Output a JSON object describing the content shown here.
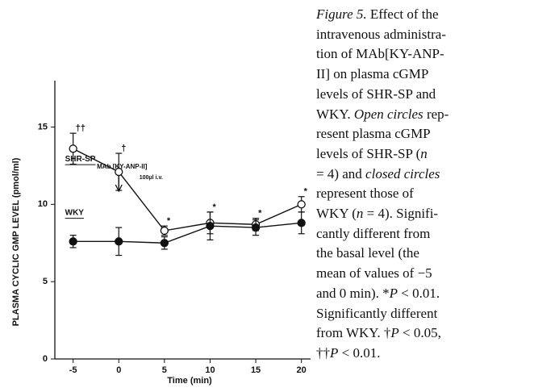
{
  "chart_data": {
    "type": "line",
    "y_label": "PLASMA CYCLIC GMP LEVEL (pmol/ml)",
    "x_label": "Time (min)",
    "x": [
      -5,
      0,
      5,
      10,
      15,
      20
    ],
    "xlim": [
      -7,
      21
    ],
    "xticks": [
      -5,
      0,
      5,
      10,
      15,
      20
    ],
    "ylim": [
      0,
      18
    ],
    "yticks": [
      0,
      5,
      10,
      15
    ],
    "annotation": {
      "text": "MAb [KY-ANP-II]",
      "subtext": "100μl i.v.",
      "x": 0
    },
    "series": [
      {
        "name": "SHR-SP",
        "color": "#111111",
        "marker": "open",
        "values": [
          13.6,
          12.1,
          8.3,
          8.8,
          8.7,
          10.0
        ],
        "errors": [
          1.0,
          1.2,
          0.3,
          0.7,
          0.4,
          0.5
        ],
        "significance": [
          "††",
          "†",
          "*",
          "*",
          "*",
          "*"
        ]
      },
      {
        "name": "WKY",
        "color": "#111111",
        "marker": "filled",
        "values": [
          7.6,
          7.6,
          7.5,
          8.6,
          8.5,
          8.8
        ],
        "errors": [
          0.4,
          0.9,
          0.4,
          0.9,
          0.5,
          0.7
        ]
      }
    ]
  },
  "caption": [
    [
      {
        "text": "Figure 5.",
        "italic": true
      },
      {
        "text": " Effect of the"
      }
    ],
    [
      {
        "text": "intravenous administra-"
      }
    ],
    [
      {
        "text": "tion of MAb[KY-ANP-"
      }
    ],
    [
      {
        "text": "II] on plasma cGMP"
      }
    ],
    [
      {
        "text": "levels of SHR-SP and"
      }
    ],
    [
      {
        "text": "WKY. "
      },
      {
        "text": "Open circles",
        "italic": true
      },
      {
        "text": " rep-"
      }
    ],
    [
      {
        "text": "resent plasma cGMP"
      }
    ],
    [
      {
        "text": "levels of SHR-SP ("
      },
      {
        "text": "n",
        "italic": true
      }
    ],
    [
      {
        "text": "= 4) and "
      },
      {
        "text": "closed circles",
        "italic": true
      }
    ],
    [
      {
        "text": "represent those of"
      }
    ],
    [
      {
        "text": "WKY ("
      },
      {
        "text": "n",
        "italic": true
      },
      {
        "text": " = 4). Signifi-"
      }
    ],
    [
      {
        "text": "cantly different from"
      }
    ],
    [
      {
        "text": "the basal level (the"
      }
    ],
    [
      {
        "text": "mean of values of −5"
      }
    ],
    [
      {
        "text": "and 0 min). *"
      },
      {
        "text": "P",
        "italic": true
      },
      {
        "text": " < 0.01."
      }
    ],
    [
      {
        "text": "Significantly different"
      }
    ],
    [
      {
        "text": "from WKY. †"
      },
      {
        "text": "P",
        "italic": true
      },
      {
        "text": " < 0.05,"
      }
    ],
    [
      {
        "text": "††"
      },
      {
        "text": "P",
        "italic": true
      },
      {
        "text": " < 0.01."
      }
    ]
  ]
}
